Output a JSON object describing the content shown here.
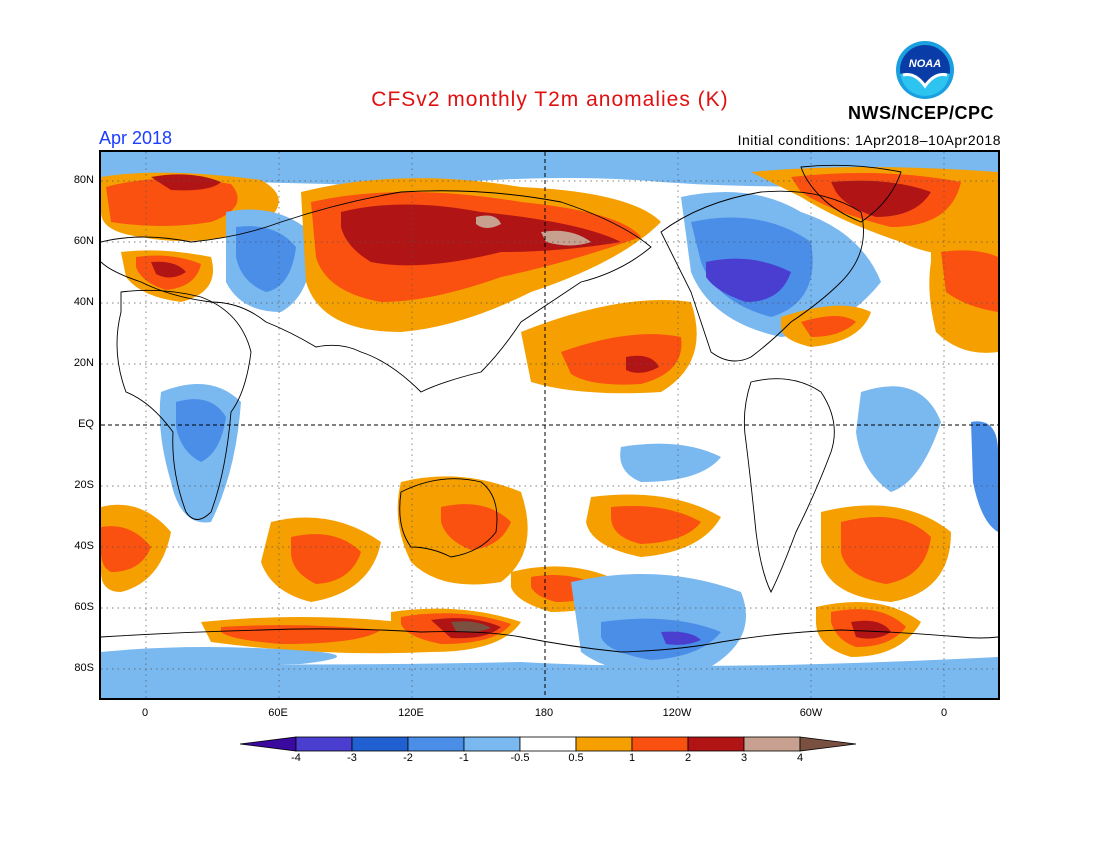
{
  "title": "CFSv2 monthly T2m anomalies (K)",
  "month_label": "Apr 2018",
  "initial_conditions": "Initial conditions: 1Apr2018–10Apr2018",
  "agency": "NWS/NCEP/CPC",
  "logo_text": "NOAA",
  "lat_labels": [
    "80N",
    "60N",
    "40N",
    "20N",
    "EQ",
    "20S",
    "40S",
    "60S",
    "80S"
  ],
  "lon_labels": [
    "0",
    "60E",
    "120E",
    "180",
    "120W",
    "60W",
    "0"
  ],
  "colorbar": {
    "labels": [
      "-4",
      "-3",
      "-2",
      "-1",
      "-0.5",
      "0.5",
      "1",
      "2",
      "3",
      "4"
    ],
    "colors": [
      "#3a0aa0",
      "#4a3ed0",
      "#2060d0",
      "#4a8ee8",
      "#7ab8f0",
      "#ffffff",
      "#f5a000",
      "#fa5010",
      "#b01414",
      "#c8a090",
      "#7a5040"
    ]
  }
}
